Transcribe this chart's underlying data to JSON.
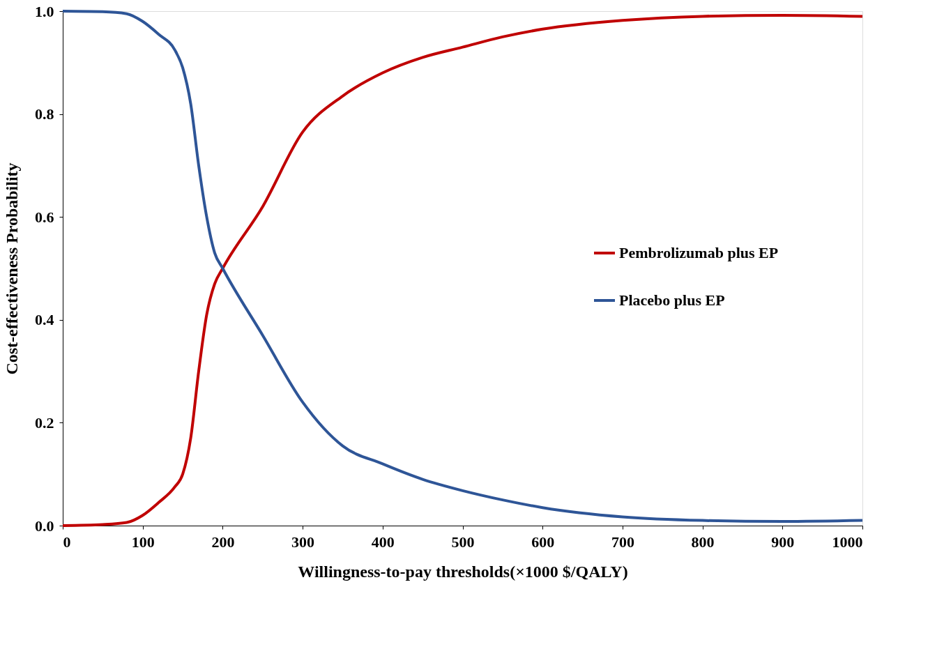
{
  "chart_data": {
    "type": "line",
    "xlabel": "Willingness-to-pay thresholds(×1000 $/QALY)",
    "ylabel": "Cost-effectiveness Probability",
    "x": [
      0,
      50,
      80,
      100,
      120,
      140,
      150,
      160,
      170,
      180,
      190,
      200,
      250,
      300,
      350,
      400,
      450,
      500,
      550,
      600,
      700,
      800,
      900,
      1000
    ],
    "series": [
      {
        "name": "Pembrolizumab plus EP",
        "color": "#c00000",
        "values": [
          0,
          0.002,
          0.006,
          0.02,
          0.045,
          0.075,
          0.1,
          0.17,
          0.3,
          0.41,
          0.47,
          0.5,
          0.62,
          0.765,
          0.835,
          0.88,
          0.91,
          0.93,
          0.95,
          0.965,
          0.982,
          0.99,
          0.992,
          0.99
        ]
      },
      {
        "name": "Placebo plus EP",
        "color": "#2e5597",
        "values": [
          1.0,
          0.999,
          0.995,
          0.98,
          0.955,
          0.925,
          0.89,
          0.82,
          0.7,
          0.6,
          0.53,
          0.5,
          0.37,
          0.24,
          0.155,
          0.12,
          0.09,
          0.068,
          0.05,
          0.035,
          0.017,
          0.01,
          0.008,
          0.01
        ]
      }
    ],
    "xlim": [
      0,
      1000
    ],
    "xticks": [
      0,
      100,
      200,
      300,
      400,
      500,
      600,
      700,
      800,
      900,
      1000
    ],
    "ylim": [
      0,
      1.0
    ],
    "yticks": [
      {
        "value": 0,
        "label": "0.0"
      },
      0.2,
      0.4,
      0.6,
      0.8,
      {
        "value": 1.0,
        "label": "1.0"
      }
    ],
    "grid": false,
    "legend": "right",
    "marker": "none",
    "line_style": "solid"
  }
}
